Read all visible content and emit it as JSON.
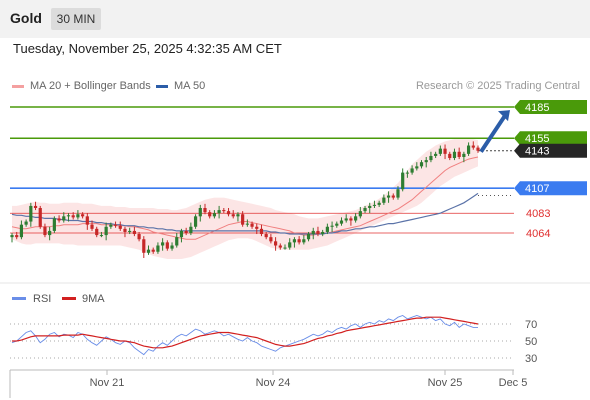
{
  "header": {
    "title": "Gold",
    "timeframe": "30 MIN"
  },
  "datetime": "Tuesday, November 25, 2025 4:32:35 AM CET",
  "legend": {
    "ma20_label": "MA 20 + Bollinger Bands",
    "ma50_label": "MA 50",
    "credit": "Research © 2025 Trading Central"
  },
  "rsi_legend": {
    "rsi_label": "RSI",
    "ma_label": "9MA"
  },
  "colors": {
    "green": "#4a9a0a",
    "blue": "#3a7bf0",
    "red": "#e03030",
    "dark": "#262626",
    "arrow": "#2b5da8",
    "band": "#fbdede",
    "ma20": "#f08080",
    "ma50": "#5b73a8",
    "rsi": "#6a8ee8",
    "rsi_ma": "#d22020"
  },
  "chart_data": [
    {
      "type": "candlestick",
      "title": "Gold",
      "timeframe": "30 MIN",
      "x_ticks": [
        "Nov 21",
        "Nov 24",
        "Nov 25",
        "Dec 5"
      ],
      "y_range": [
        4040,
        4200
      ],
      "price_levels": [
        {
          "value": 4185,
          "label": "4185",
          "kind": "resistance",
          "color": "#4a9a0a"
        },
        {
          "value": 4155,
          "label": "4155",
          "kind": "resistance",
          "color": "#4a9a0a"
        },
        {
          "value": 4143,
          "label": "4143",
          "kind": "last",
          "color": "#262626"
        },
        {
          "value": 4107,
          "label": "4107",
          "kind": "pivot",
          "color": "#3a7bf0"
        },
        {
          "value": 4083,
          "label": "4083",
          "kind": "support",
          "color": "#e03030"
        },
        {
          "value": 4064,
          "label": "4064",
          "kind": "support",
          "color": "#e03030"
        }
      ],
      "bias": "up",
      "close": [
        4062,
        4060,
        4072,
        4075,
        4090,
        4088,
        4070,
        4062,
        4066,
        4078,
        4076,
        4080,
        4081,
        4079,
        4082,
        4080,
        4072,
        4068,
        4062,
        4062,
        4070,
        4072,
        4071,
        4068,
        4065,
        4066,
        4063,
        4058,
        4045,
        4048,
        4046,
        4052,
        4055,
        4049,
        4052,
        4060,
        4066,
        4064,
        4070,
        4080,
        4088,
        4084,
        4080,
        4083,
        4086,
        4085,
        4082,
        4080,
        4082,
        4072,
        4073,
        4070,
        4068,
        4063,
        4060,
        4056,
        4052,
        4050,
        4050,
        4055,
        4058,
        4055,
        4058,
        4063,
        4066,
        4063,
        4065,
        4070,
        4071,
        4073,
        4076,
        4078,
        4076,
        4080,
        4085,
        4088,
        4090,
        4091,
        4093,
        4098,
        4100,
        4098,
        4106,
        4122,
        4122,
        4126,
        4128,
        4132,
        4134,
        4138,
        4140,
        4145,
        4140,
        4136,
        4142,
        4137,
        4140,
        4148,
        4146,
        4143
      ],
      "ma20": [
        4070,
        4069,
        4068,
        4068,
        4069,
        4070,
        4070,
        4070,
        4070,
        4071,
        4071,
        4072,
        4072,
        4072,
        4072,
        4073,
        4073,
        4073,
        4073,
        4072,
        4072,
        4072,
        4071,
        4071,
        4071,
        4070,
        4070,
        4069,
        4068,
        4067,
        4065,
        4064,
        4063,
        4062,
        4061,
        4060,
        4059,
        4058,
        4058,
        4058,
        4060,
        4062,
        4064,
        4066,
        4068,
        4070,
        4072,
        4073,
        4074,
        4075,
        4075,
        4074,
        4073,
        4072,
        4071,
        4070,
        4069,
        4068,
        4067,
        4066,
        4064,
        4063,
        4062,
        4062,
        4062,
        4063,
        4064,
        4064,
        4065,
        4066,
        4067,
        4068,
        4069,
        4070,
        4071,
        4073,
        4075,
        4077,
        4079,
        4081,
        4083,
        4085,
        4087,
        4090,
        4093,
        4096,
        4100,
        4104,
        4108,
        4112,
        4116,
        4120,
        4124,
        4127,
        4129,
        4131,
        4133,
        4135,
        4136,
        4137
      ],
      "bb_upper": [
        4090,
        4090,
        4091,
        4092,
        4093,
        4094,
        4093,
        4093,
        4092,
        4092,
        4092,
        4093,
        4093,
        4093,
        4093,
        4092,
        4092,
        4092,
        4091,
        4090,
        4090,
        4090,
        4089,
        4089,
        4089,
        4088,
        4088,
        4088,
        4088,
        4088,
        4088,
        4087,
        4087,
        4087,
        4086,
        4086,
        4087,
        4088,
        4090,
        4092,
        4094,
        4096,
        4097,
        4098,
        4098,
        4098,
        4097,
        4096,
        4095,
        4094,
        4093,
        4092,
        4091,
        4090,
        4089,
        4088,
        4086,
        4085,
        4084,
        4083,
        4082,
        4080,
        4079,
        4078,
        4078,
        4078,
        4079,
        4080,
        4081,
        4082,
        4083,
        4084,
        4085,
        4086,
        4088,
        4090,
        4092,
        4094,
        4097,
        4100,
        4104,
        4108,
        4112,
        4118,
        4124,
        4130,
        4134,
        4138,
        4142,
        4145,
        4148,
        4150,
        4152,
        4153,
        4154,
        4154,
        4154,
        4154,
        4154,
        4153
      ],
      "bb_lower": [
        4058,
        4056,
        4054,
        4053,
        4053,
        4054,
        4054,
        4054,
        4054,
        4054,
        4054,
        4053,
        4053,
        4053,
        4052,
        4052,
        4052,
        4052,
        4052,
        4052,
        4052,
        4052,
        4052,
        4052,
        4051,
        4050,
        4049,
        4048,
        4046,
        4044,
        4042,
        4041,
        4040,
        4039,
        4039,
        4039,
        4039,
        4040,
        4041,
        4043,
        4045,
        4047,
        4049,
        4051,
        4053,
        4055,
        4057,
        4058,
        4059,
        4059,
        4059,
        4058,
        4056,
        4054,
        4052,
        4050,
        4049,
        4048,
        4048,
        4048,
        4048,
        4048,
        4048,
        4048,
        4049,
        4050,
        4051,
        4052,
        4054,
        4056,
        4058,
        4060,
        4062,
        4064,
        4066,
        4068,
        4070,
        4072,
        4074,
        4076,
        4078,
        4080,
        4082,
        4084,
        4086,
        4088,
        4090,
        4093,
        4097,
        4101,
        4105,
        4109,
        4112,
        4115,
        4118,
        4120,
        4122,
        4124,
        4126,
        4128
      ],
      "ma50": [
        4082,
        4081,
        4081,
        4080,
        4080,
        4079,
        4079,
        4078,
        4078,
        4078,
        4077,
        4077,
        4076,
        4076,
        4076,
        4075,
        4075,
        4075,
        4074,
        4074,
        4073,
        4073,
        4072,
        4072,
        4071,
        4071,
        4071,
        4070,
        4070,
        4069,
        4069,
        4068,
        4068,
        4067,
        4067,
        4066,
        4066,
        4066,
        4066,
        4066,
        4066,
        4066,
        4066,
        4066,
        4066,
        4066,
        4066,
        4066,
        4066,
        4066,
        4066,
        4066,
        4066,
        4066,
        4066,
        4065,
        4065,
        4064,
        4064,
        4063,
        4063,
        4063,
        4063,
        4063,
        4063,
        4063,
        4063,
        4064,
        4064,
        4065,
        4066,
        4066,
        4067,
        4068,
        4068,
        4069,
        4070,
        4070,
        4071,
        4072,
        4073,
        4073,
        4074,
        4075,
        4076,
        4077,
        4078,
        4079,
        4080,
        4081,
        4082,
        4083,
        4085,
        4087,
        4089,
        4091,
        4093,
        4096,
        4099,
        4102
      ]
    },
    {
      "type": "line",
      "title": "RSI",
      "y_ticks": [
        70,
        50,
        30
      ],
      "y_range": [
        20,
        85
      ],
      "series": [
        {
          "name": "RSI",
          "values": [
            48,
            50,
            55,
            60,
            62,
            56,
            48,
            52,
            58,
            60,
            55,
            58,
            57,
            54,
            60,
            58,
            52,
            48,
            45,
            50,
            55,
            52,
            48,
            46,
            50,
            48,
            42,
            38,
            34,
            40,
            38,
            44,
            48,
            45,
            50,
            55,
            58,
            56,
            60,
            64,
            62,
            58,
            60,
            62,
            60,
            56,
            58,
            55,
            52,
            50,
            54,
            50,
            48,
            44,
            42,
            40,
            38,
            42,
            44,
            46,
            48,
            50,
            52,
            55,
            58,
            56,
            58,
            62,
            60,
            64,
            66,
            64,
            68,
            70,
            66,
            70,
            72,
            70,
            74,
            72,
            76,
            74,
            78,
            80,
            76,
            78,
            80,
            78,
            76,
            78,
            74,
            76,
            70,
            68,
            72,
            66,
            70,
            68,
            66,
            66
          ]
        },
        {
          "name": "9MA",
          "values": [
            50,
            50,
            51,
            53,
            55,
            56,
            56,
            56,
            56,
            56,
            56,
            57,
            57,
            57,
            57,
            58,
            57,
            56,
            55,
            54,
            53,
            52,
            51,
            50,
            50,
            49,
            48,
            46,
            44,
            43,
            42,
            42,
            42,
            43,
            44,
            46,
            48,
            50,
            52,
            54,
            56,
            57,
            58,
            59,
            60,
            60,
            60,
            59,
            58,
            57,
            56,
            55,
            54,
            52,
            50,
            48,
            46,
            45,
            44,
            44,
            45,
            46,
            47,
            49,
            51,
            53,
            54,
            56,
            57,
            59,
            60,
            62,
            63,
            64,
            65,
            66,
            67,
            68,
            69,
            70,
            71,
            72,
            73,
            74,
            75,
            76,
            77,
            77,
            78,
            78,
            78,
            78,
            77,
            76,
            75,
            74,
            73,
            72,
            71,
            70
          ]
        }
      ]
    }
  ]
}
